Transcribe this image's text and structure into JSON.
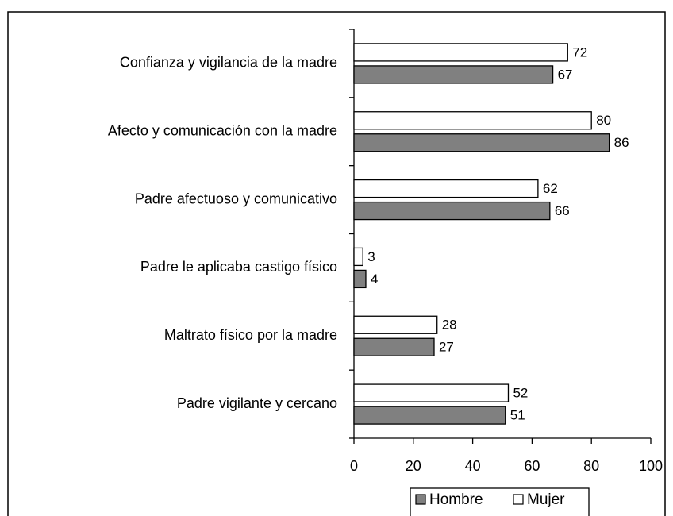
{
  "chart_data": {
    "type": "barh",
    "categories": [
      "Confianza y vigilancia de la madre",
      "Afecto y comunicación con la madre",
      "Padre afectuoso y comunicativo",
      "Padre le aplicaba castigo físico",
      "Maltrato físico por la madre",
      "Padre vigilante y cercano"
    ],
    "series": [
      {
        "name": "Hombre",
        "color": "#808080",
        "values": [
          67,
          86,
          66,
          4,
          27,
          51
        ]
      },
      {
        "name": "Mujer",
        "color": "#ffffff",
        "values": [
          72,
          80,
          62,
          3,
          28,
          52
        ]
      }
    ],
    "xlim": [
      0,
      100
    ],
    "xticks": [
      0,
      20,
      40,
      60,
      80,
      100
    ]
  }
}
